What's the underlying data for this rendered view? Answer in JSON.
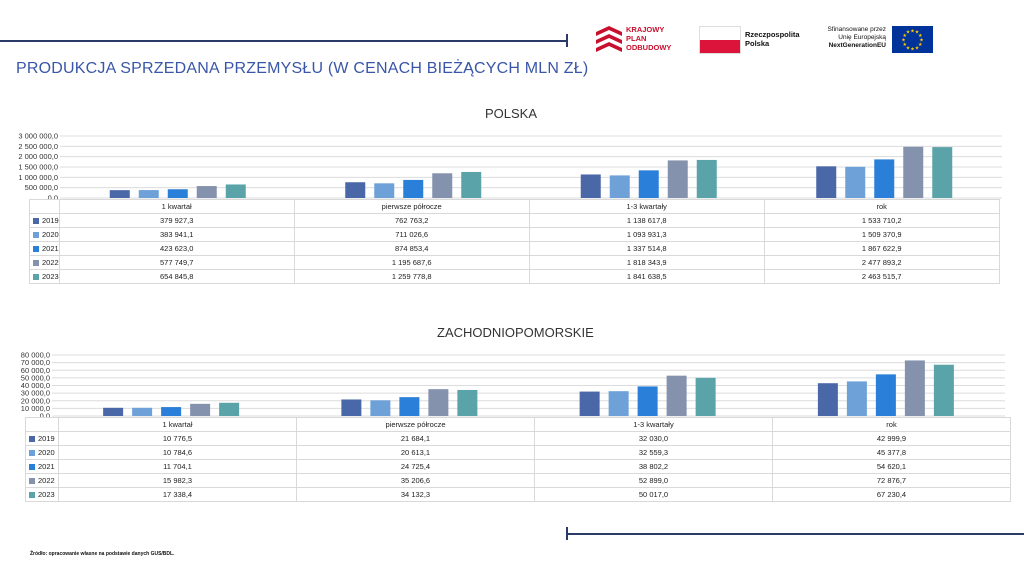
{
  "page": {
    "title": "PRODUKCJA SPRZEDANA PRZEMYSŁU (W CENACH BIEŻĄCYCH MLN ZŁ)",
    "source": "Źródło: opracowanie własne na podstawie danych GUS/BDL."
  },
  "logos": {
    "kpo": [
      "KRAJOWY",
      "PLAN",
      "ODBUDOWY"
    ],
    "rp": [
      "Rzeczpospolita",
      "Polska"
    ],
    "eu": [
      "Sfinansowane przez",
      "Unię Europejską",
      "NextGenerationEU"
    ]
  },
  "colors": {
    "2019": "#4a67a8",
    "2020": "#6ea1d8",
    "2021": "#2a7fd9",
    "2022": "#8592ad",
    "2023": "#5aa3a8"
  },
  "chart_data": [
    {
      "type": "bar",
      "title": "POLSKA",
      "categories": [
        "1 kwartał",
        "pierwsze półrocze",
        "1-3 kwartały",
        "rok"
      ],
      "ylim": [
        0,
        3000000
      ],
      "yticks": [
        "0,0",
        "500 000,0",
        "1 000 000,0",
        "1 500 000,0",
        "2 000 000,0",
        "2 500 000,0",
        "3 000 000,0"
      ],
      "series": [
        {
          "name": "2019",
          "values": [
            379927.3,
            762763.2,
            1138617.8,
            1533710.2
          ],
          "labels": [
            "379 927,3",
            "762 763,2",
            "1 138 617,8",
            "1 533 710,2"
          ]
        },
        {
          "name": "2020",
          "values": [
            383941.1,
            711026.6,
            1093931.3,
            1509370.9
          ],
          "labels": [
            "383 941,1",
            "711 026,6",
            "1 093 931,3",
            "1 509 370,9"
          ]
        },
        {
          "name": "2021",
          "values": [
            423623.0,
            874853.4,
            1337514.8,
            1867622.9
          ],
          "labels": [
            "423 623,0",
            "874 853,4",
            "1 337 514,8",
            "1 867 622,9"
          ]
        },
        {
          "name": "2022",
          "values": [
            577749.7,
            1195687.6,
            1818343.9,
            2477893.2
          ],
          "labels": [
            "577 749,7",
            "1 195 687,6",
            "1 818 343,9",
            "2 477 893,2"
          ]
        },
        {
          "name": "2023",
          "values": [
            654845.8,
            1259778.8,
            1841638.5,
            2463515.7
          ],
          "labels": [
            "654 845,8",
            "1 259 778,8",
            "1 841 638,5",
            "2 463 515,7"
          ]
        }
      ]
    },
    {
      "type": "bar",
      "title": "ZACHODNIOPOMORSKIE",
      "categories": [
        "1 kwartał",
        "pierwsze półrocze",
        "1-3 kwartały",
        "rok"
      ],
      "ylim": [
        0,
        80000
      ],
      "yticks": [
        "0,0",
        "10 000,0",
        "20 000,0",
        "30 000,0",
        "40 000,0",
        "50 000,0",
        "60 000,0",
        "70 000,0",
        "80 000,0"
      ],
      "series": [
        {
          "name": "2019",
          "values": [
            10776.5,
            21684.1,
            32030.0,
            42999.9
          ],
          "labels": [
            "10 776,5",
            "21 684,1",
            "32 030,0",
            "42 999,9"
          ]
        },
        {
          "name": "2020",
          "values": [
            10784.6,
            20613.1,
            32559.3,
            45377.8
          ],
          "labels": [
            "10 784,6",
            "20 613,1",
            "32 559,3",
            "45 377,8"
          ]
        },
        {
          "name": "2021",
          "values": [
            11704.1,
            24725.4,
            38802.2,
            54620.1
          ],
          "labels": [
            "11 704,1",
            "24 725,4",
            "38 802,2",
            "54 620,1"
          ]
        },
        {
          "name": "2022",
          "values": [
            15982.3,
            35206.6,
            52899.0,
            72876.7
          ],
          "labels": [
            "15 982,3",
            "35 206,6",
            "52 899,0",
            "72 876,7"
          ]
        },
        {
          "name": "2023",
          "values": [
            17338.4,
            34132.3,
            50017.0,
            67230.4
          ],
          "labels": [
            "17 338,4",
            "34 132,3",
            "50 017,0",
            "67 230,4"
          ]
        }
      ]
    }
  ]
}
